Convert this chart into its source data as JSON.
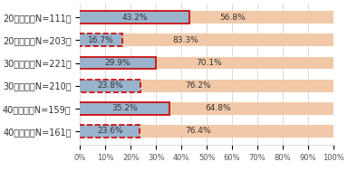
{
  "labels_ja": [
    "20代男性（N=111）",
    "20代女性（N=203）",
    "30代男性（N=221）",
    "30代女性（N=210）",
    "40代男性（N=159）",
    "40代女性（N=161）"
  ],
  "know": [
    43.2,
    16.7,
    29.9,
    23.8,
    35.2,
    23.6
  ],
  "not_know": [
    56.8,
    83.3,
    70.1,
    76.2,
    64.8,
    76.4
  ],
  "know_color": "#9ab3cc",
  "not_know_color": "#f2c9a8",
  "solid_border_rows": [
    0,
    2,
    4
  ],
  "dashed_border_rows": [
    1,
    3,
    5
  ],
  "border_color": "#cc0000",
  "xlim": [
    0,
    100
  ],
  "xticks": [
    0,
    10,
    20,
    30,
    40,
    50,
    60,
    70,
    80,
    90,
    100
  ],
  "xtick_labels": [
    "0%",
    "10%",
    "20%",
    "30%",
    "40%",
    "50%",
    "60%",
    "70%",
    "80%",
    "90%",
    "100%"
  ],
  "background_color": "#ffffff",
  "grid_color": "#cccccc",
  "font_size_label": 7,
  "font_size_bar_text": 6.5,
  "font_size_tick": 6,
  "font_size_legend": 7
}
